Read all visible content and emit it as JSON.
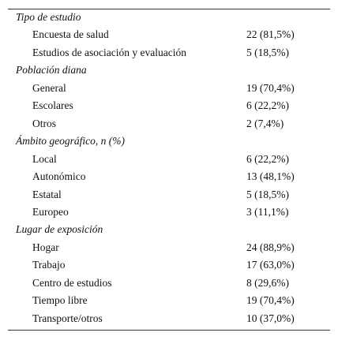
{
  "table": {
    "sections": [
      {
        "title": "Tipo de estudio",
        "rows": [
          [
            "Encuesta de salud",
            "22 (81,5%)"
          ],
          [
            "Estudios de asociación y evaluación",
            "5 (18,5%)"
          ]
        ]
      },
      {
        "title": "Población diana",
        "rows": [
          [
            "General",
            "19 (70,4%)"
          ],
          [
            "Escolares",
            "6 (22,2%)"
          ],
          [
            "Otros",
            "2 (7,4%)"
          ]
        ]
      },
      {
        "title": "Ámbito geográfico, n (%)",
        "rows": [
          [
            "Local",
            "6 (22,2%)"
          ],
          [
            "Autonómico",
            "13 (48,1%)"
          ],
          [
            "Estatal",
            "5 (18,5%)"
          ],
          [
            "Europeo",
            "3 (11,1%)"
          ]
        ]
      },
      {
        "title": "Lugar de exposición",
        "rows": [
          [
            "Hogar",
            "24 (88,9%)"
          ],
          [
            "Trabajo",
            "17 (63,0%)"
          ],
          [
            "Centro de estudios",
            "8 (29,6%)"
          ],
          [
            "Tiempo libre",
            "19 (70,4%)"
          ],
          [
            "Transporte/otros",
            "10 (37,0%)"
          ]
        ]
      }
    ]
  }
}
